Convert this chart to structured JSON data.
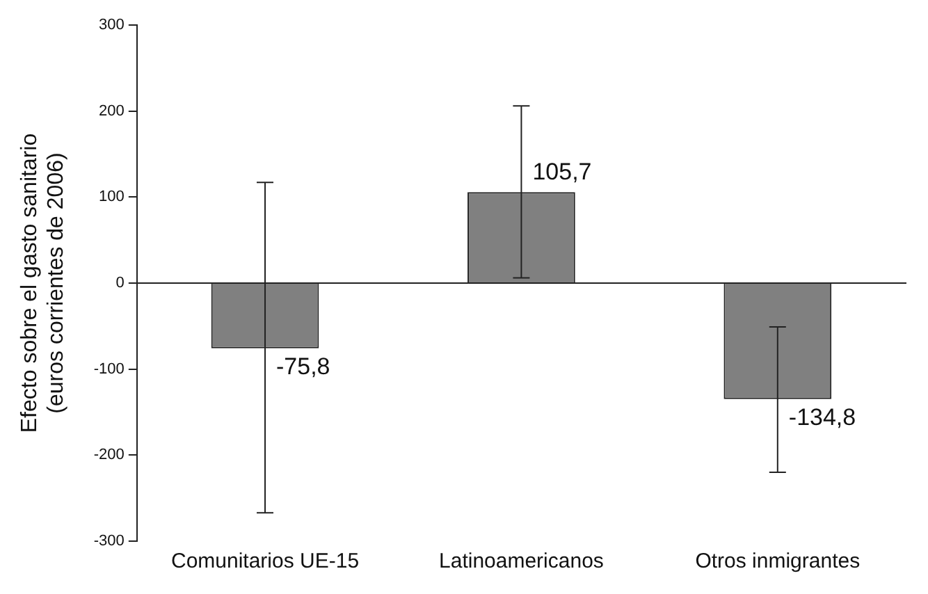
{
  "chart_data": {
    "type": "bar",
    "ylabel": "Efecto sobre el gasto sanitario\n(euros corrientes de 2006)",
    "categories": [
      "Comunitarios UE-15",
      "Latinoamericanos",
      "Otros inmigrantes"
    ],
    "values": [
      -75.8,
      105.7,
      -134.8
    ],
    "value_labels": [
      "-75,8",
      "105,7",
      "-134,8"
    ],
    "errors": [
      [
        -267,
        117
      ],
      [
        6,
        206
      ],
      [
        -220,
        -51
      ]
    ],
    "color": "#808080",
    "ylim": [
      -300,
      300
    ],
    "yticks": [
      -300,
      -200,
      -100,
      0,
      100,
      200,
      300
    ],
    "legend": false
  }
}
